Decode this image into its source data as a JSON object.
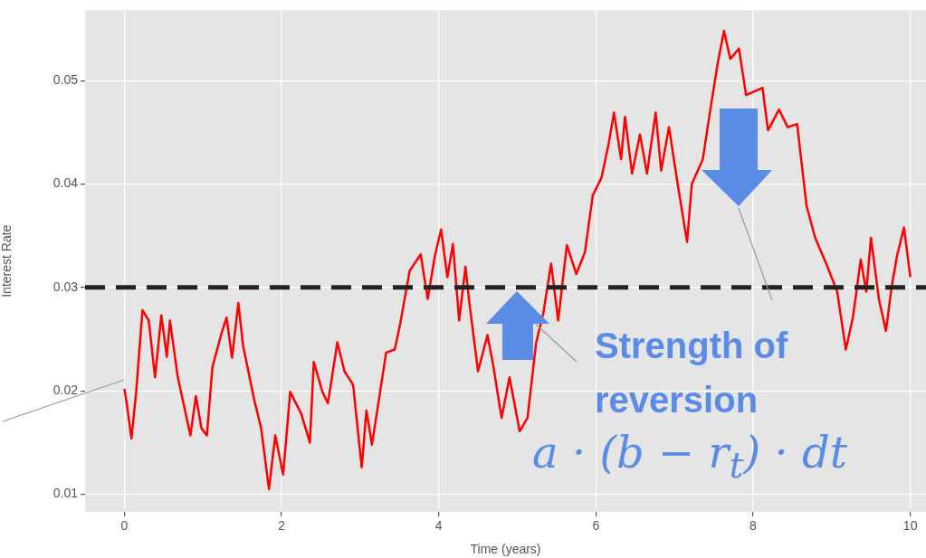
{
  "chart_data": {
    "type": "line",
    "xlabel": "Time (years)",
    "ylabel": "Interest Rate",
    "xlim": [
      -0.5,
      10.2
    ],
    "xticks": [
      0,
      2,
      4,
      6,
      8,
      10
    ],
    "ylim": [
      0.0083,
      0.0568
    ],
    "yticks": [
      0.01,
      0.02,
      0.03,
      0.04,
      0.05
    ],
    "grid": true,
    "legend": false,
    "marker": "none",
    "line_style": "solid",
    "ref_lines": [
      {
        "axis": "y",
        "value": 0.03,
        "color": "#222222",
        "line_style": "dashed"
      }
    ],
    "annotations": [
      "Strength of reversion",
      "a · (b − r$_{t}$) · dt"
    ],
    "series": [
      {
        "color": "#ff0000",
        "x": [
          0,
          0.03,
          0.09,
          0.15,
          0.23,
          0.31,
          0.39,
          0.47,
          0.54,
          0.58,
          0.68,
          0.84,
          0.91,
          0.98,
          1.05,
          1.12,
          1.23,
          1.3,
          1.37,
          1.45,
          1.51,
          1.65,
          1.74,
          1.84,
          1.92,
          2.02,
          2.11,
          2.25,
          2.36,
          2.41,
          2.52,
          2.59,
          2.71,
          2.8,
          2.91,
          3.02,
          3.08,
          3.15,
          3.24,
          3.33,
          3.44,
          3.51,
          3.63,
          3.77,
          3.86,
          3.95,
          4.03,
          4.11,
          4.18,
          4.26,
          4.34,
          4.39,
          4.5,
          4.62,
          4.69,
          4.8,
          4.9,
          5.03,
          5.13,
          5.24,
          5.33,
          5.43,
          5.52,
          5.63,
          5.75,
          5.86,
          5.96,
          6.07,
          6.16,
          6.23,
          6.32,
          6.37,
          6.46,
          6.56,
          6.65,
          6.76,
          6.83,
          6.93,
          7.04,
          7.16,
          7.22,
          7.36,
          7.45,
          7.55,
          7.63,
          7.71,
          7.82,
          7.91,
          8.12,
          8.19,
          8.33,
          8.44,
          8.56,
          8.68,
          8.79,
          8.93,
          9.07,
          9.18,
          9.27,
          9.37,
          9.44,
          9.5,
          9.6,
          9.69,
          9.76,
          9.83,
          9.92,
          10
        ],
        "values": [
          0.0202,
          0.0188,
          0.0154,
          0.0199,
          0.0278,
          0.0268,
          0.0213,
          0.0273,
          0.0233,
          0.0268,
          0.0213,
          0.0157,
          0.0195,
          0.0164,
          0.0157,
          0.0223,
          0.0254,
          0.0271,
          0.0232,
          0.0285,
          0.0244,
          0.0192,
          0.0164,
          0.0105,
          0.0157,
          0.0119,
          0.0199,
          0.0178,
          0.015,
          0.0228,
          0.0199,
          0.0188,
          0.0247,
          0.0219,
          0.0206,
          0.0126,
          0.0181,
          0.0148,
          0.0192,
          0.0237,
          0.024,
          0.0265,
          0.0316,
          0.0332,
          0.0289,
          0.033,
          0.0356,
          0.031,
          0.0342,
          0.0268,
          0.032,
          0.0285,
          0.0219,
          0.0254,
          0.0226,
          0.0174,
          0.0213,
          0.0161,
          0.0174,
          0.0247,
          0.0275,
          0.0323,
          0.0268,
          0.0341,
          0.0313,
          0.0334,
          0.0389,
          0.0406,
          0.0438,
          0.0469,
          0.0424,
          0.0465,
          0.041,
          0.0448,
          0.041,
          0.0469,
          0.0413,
          0.0455,
          0.04,
          0.0344,
          0.04,
          0.0424,
          0.0469,
          0.0517,
          0.0548,
          0.0521,
          0.0531,
          0.0486,
          0.0493,
          0.0452,
          0.0472,
          0.0455,
          0.0458,
          0.0379,
          0.0348,
          0.0323,
          0.0296,
          0.024,
          0.0271,
          0.0327,
          0.0296,
          0.0348,
          0.0289,
          0.0258,
          0.0299,
          0.033,
          0.0358,
          0.031
        ]
      }
    ]
  }
}
